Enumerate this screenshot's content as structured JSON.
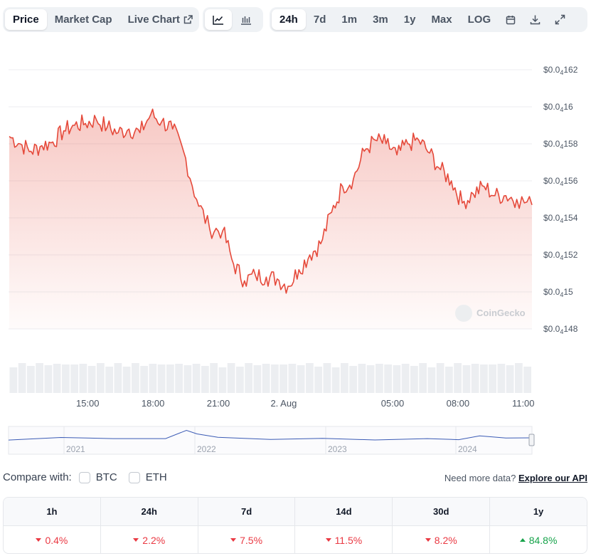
{
  "tabs": {
    "price": "Price",
    "market_cap": "Market Cap",
    "live_chart": "Live Chart"
  },
  "icons": {
    "line_chart": "line-chart-icon",
    "candle_chart": "candlestick-chart-icon",
    "calendar": "calendar-icon",
    "download": "download-icon",
    "fullscreen": "expand-icon",
    "external": "external-link-icon"
  },
  "ranges": {
    "h24": "24h",
    "d7": "7d",
    "m1": "1m",
    "m3": "3m",
    "y1": "1y",
    "max": "Max",
    "log": "LOG"
  },
  "watermark": "CoinGecko",
  "chart_data": {
    "type": "area",
    "color": "#e5493a",
    "y_ticks": [
      {
        "prefix": "$0.0",
        "sub": "4",
        "digits": "162"
      },
      {
        "prefix": "$0.0",
        "sub": "4",
        "digits": "16"
      },
      {
        "prefix": "$0.0",
        "sub": "4",
        "digits": "158"
      },
      {
        "prefix": "$0.0",
        "sub": "4",
        "digits": "156"
      },
      {
        "prefix": "$0.0",
        "sub": "4",
        "digits": "154"
      },
      {
        "prefix": "$0.0",
        "sub": "4",
        "digits": "152"
      },
      {
        "prefix": "$0.0",
        "sub": "4",
        "digits": "15"
      },
      {
        "prefix": "$0.0",
        "sub": "4",
        "digits": "148"
      }
    ],
    "y_values": [
      1.62e-05,
      1.6e-05,
      1.58e-05,
      1.56e-05,
      1.54e-05,
      1.52e-05,
      1.5e-05,
      1.48e-05
    ],
    "x_ticks": [
      "15:00",
      "18:00",
      "21:00",
      "2. Aug",
      "05:00",
      "08:00",
      "11:00"
    ],
    "x_tick_hours": [
      3.6,
      6.6,
      9.6,
      12.6,
      17.6,
      20.6,
      23.6
    ],
    "ylim": [
      1.48e-05,
      1.62e-05
    ],
    "xlim": [
      0,
      24
    ],
    "series": [
      {
        "values": [
          [
            0.0,
            1.584e-05
          ],
          [
            0.5,
            1.58e-05
          ],
          [
            1.0,
            1.576e-05
          ],
          [
            1.5,
            1.579e-05
          ],
          [
            2.0,
            1.581e-05
          ],
          [
            2.5,
            1.587e-05
          ],
          [
            3.0,
            1.59e-05
          ],
          [
            3.5,
            1.591e-05
          ],
          [
            4.0,
            1.593e-05
          ],
          [
            4.5,
            1.589e-05
          ],
          [
            5.0,
            1.586e-05
          ],
          [
            5.5,
            1.588e-05
          ],
          [
            6.0,
            1.586e-05
          ],
          [
            6.5,
            1.596e-05
          ],
          [
            7.0,
            1.592e-05
          ],
          [
            7.5,
            1.588e-05
          ],
          [
            8.0,
            1.576e-05
          ],
          [
            8.6,
            1.55e-05
          ],
          [
            9.2,
            1.534e-05
          ],
          [
            9.8,
            1.533e-05
          ],
          [
            10.3,
            1.515e-05
          ],
          [
            10.8,
            1.506e-05
          ],
          [
            11.3,
            1.509e-05
          ],
          [
            11.8,
            1.508e-05
          ],
          [
            12.3,
            1.507e-05
          ],
          [
            12.8,
            1.503e-05
          ],
          [
            13.3,
            1.512e-05
          ],
          [
            13.8,
            1.52e-05
          ],
          [
            14.3,
            1.526e-05
          ],
          [
            14.8,
            1.543e-05
          ],
          [
            15.3,
            1.557e-05
          ],
          [
            15.8,
            1.561e-05
          ],
          [
            16.3,
            1.576e-05
          ],
          [
            16.8,
            1.582e-05
          ],
          [
            17.3,
            1.58e-05
          ],
          [
            17.8,
            1.574e-05
          ],
          [
            18.3,
            1.58e-05
          ],
          [
            18.8,
            1.582e-05
          ],
          [
            19.3,
            1.575e-05
          ],
          [
            19.8,
            1.566e-05
          ],
          [
            20.3,
            1.56e-05
          ],
          [
            20.8,
            1.548e-05
          ],
          [
            21.3,
            1.553e-05
          ],
          [
            21.8,
            1.557e-05
          ],
          [
            22.3,
            1.552e-05
          ],
          [
            22.8,
            1.552e-05
          ],
          [
            23.3,
            1.55e-05
          ],
          [
            24.0,
            1.547e-05
          ]
        ]
      }
    ],
    "volume_bars": 60,
    "navigator": {
      "years": [
        "2021",
        "2022",
        "2023",
        "2024"
      ],
      "series": [
        [
          0,
          0.5
        ],
        [
          0.1,
          0.62
        ],
        [
          0.2,
          0.55
        ],
        [
          0.3,
          0.58
        ],
        [
          0.34,
          0.85
        ],
        [
          0.36,
          0.75
        ],
        [
          0.4,
          0.6
        ],
        [
          0.5,
          0.55
        ],
        [
          0.6,
          0.56
        ],
        [
          0.7,
          0.53
        ],
        [
          0.8,
          0.55
        ],
        [
          0.86,
          0.54
        ],
        [
          0.9,
          0.65
        ],
        [
          0.95,
          0.6
        ],
        [
          1.0,
          0.58
        ]
      ]
    }
  },
  "compare": {
    "label": "Compare with:",
    "btc": "BTC",
    "eth": "ETH"
  },
  "api": {
    "text": "Need more data?",
    "link": "Explore our API"
  },
  "performance": [
    {
      "period": "1h",
      "value": "0.4%",
      "dir": "down"
    },
    {
      "period": "24h",
      "value": "2.2%",
      "dir": "down"
    },
    {
      "period": "7d",
      "value": "7.5%",
      "dir": "down"
    },
    {
      "period": "14d",
      "value": "11.5%",
      "dir": "down"
    },
    {
      "period": "30d",
      "value": "8.2%",
      "dir": "down"
    },
    {
      "period": "1y",
      "value": "84.8%",
      "dir": "up"
    }
  ]
}
